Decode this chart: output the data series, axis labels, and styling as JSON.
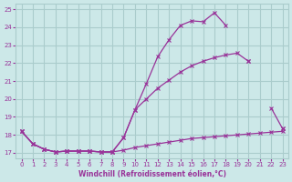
{
  "xlabel": "Windchill (Refroidissement éolien,°C)",
  "ylabel": "",
  "xlim": [
    -0.5,
    23.5
  ],
  "ylim": [
    16.7,
    25.3
  ],
  "yticks": [
    17,
    18,
    19,
    20,
    21,
    22,
    23,
    24,
    25
  ],
  "xticks": [
    0,
    1,
    2,
    3,
    4,
    5,
    6,
    7,
    8,
    9,
    10,
    11,
    12,
    13,
    14,
    15,
    16,
    17,
    18,
    19,
    20,
    21,
    22,
    23
  ],
  "bg_color": "#cce8e8",
  "grid_color": "#aacccc",
  "line_color": "#993399",
  "line1_x": [
    0,
    1,
    2,
    3,
    4,
    5,
    6,
    7,
    8,
    9,
    10,
    11,
    12,
    13,
    14,
    15,
    16,
    17,
    18,
    19,
    20,
    21,
    22,
    23
  ],
  "line1_y": [
    18.2,
    17.5,
    17.2,
    17.05,
    17.1,
    17.1,
    17.1,
    17.05,
    17.05,
    17.15,
    17.3,
    17.4,
    17.5,
    17.6,
    17.7,
    17.8,
    17.85,
    17.9,
    17.95,
    18.0,
    18.05,
    18.1,
    18.15,
    18.2
  ],
  "line2_x": [
    0,
    1,
    2,
    3,
    4,
    5,
    6,
    7,
    8,
    9,
    10,
    11,
    12,
    13,
    14,
    15,
    16,
    17,
    18,
    19,
    20,
    21,
    22,
    23
  ],
  "line2_y": [
    18.2,
    17.5,
    17.2,
    17.05,
    17.1,
    17.1,
    17.1,
    17.05,
    17.05,
    17.85,
    19.4,
    20.85,
    22.35,
    23.3,
    24.1,
    24.35,
    24.3,
    24.8,
    24.1,
    null,
    22.1,
    null,
    19.5,
    18.35
  ],
  "line3_x": [
    0,
    1,
    2,
    3,
    4,
    5,
    6,
    7,
    8,
    9,
    10,
    11,
    12,
    13,
    14,
    15,
    16,
    17,
    18,
    19,
    20,
    21,
    22,
    23
  ],
  "line3_y": [
    18.2,
    17.5,
    17.2,
    17.05,
    17.1,
    17.1,
    17.1,
    17.05,
    17.05,
    17.85,
    19.4,
    20.0,
    20.6,
    21.05,
    21.5,
    21.85,
    22.1,
    22.3,
    22.45,
    22.55,
    22.1,
    null,
    null,
    18.35
  ]
}
